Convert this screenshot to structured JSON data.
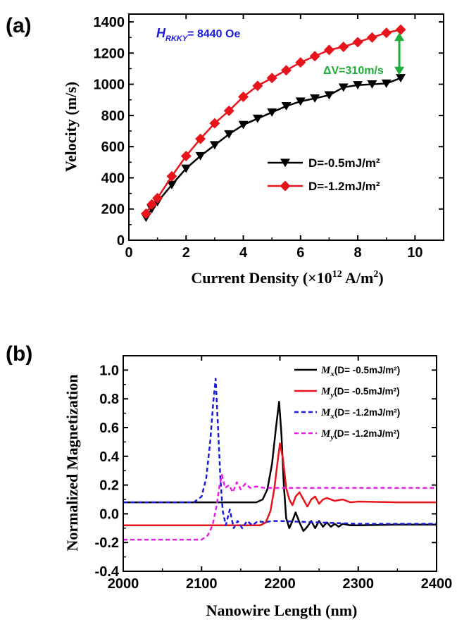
{
  "chart_data": [
    {
      "panel": "(a)",
      "type": "line",
      "xlabel": "Current Density (×10¹² A/m²)",
      "ylabel": "Velocity (m/s)",
      "xlim": [
        0,
        11
      ],
      "ylim": [
        0,
        1450
      ],
      "xticks": [
        0,
        2,
        4,
        6,
        8,
        10
      ],
      "yticks": [
        0,
        200,
        400,
        600,
        800,
        1000,
        1200,
        1400
      ],
      "annotation_hrkky": {
        "symbol": "H",
        "subscript": "RKKY",
        "value": "= 8440 Oe",
        "color": "#1a1adb"
      },
      "annotation_dv": {
        "text": "ΔV=310m/s",
        "color": "#1fae3a"
      },
      "legend_position": "center-right",
      "series": [
        {
          "name": "D=-0.5mJ/m²",
          "color": "#000000",
          "marker": "triangle-down",
          "x": [
            0.6,
            0.8,
            1.0,
            1.5,
            2.0,
            2.5,
            3.0,
            3.5,
            4.0,
            4.5,
            5.0,
            5.5,
            6.0,
            6.5,
            7.0,
            7.5,
            8.0,
            8.5,
            9.0,
            9.5
          ],
          "y": [
            145,
            200,
            245,
            355,
            460,
            540,
            610,
            680,
            740,
            780,
            820,
            860,
            890,
            910,
            930,
            980,
            995,
            1000,
            1005,
            1040
          ]
        },
        {
          "name": "D=-1.2mJ/m²",
          "color": "#e8141b",
          "marker": "diamond",
          "x": [
            0.6,
            0.8,
            1.0,
            1.5,
            2.0,
            2.5,
            3.0,
            3.5,
            4.0,
            4.5,
            5.0,
            5.5,
            6.0,
            6.5,
            7.0,
            7.5,
            8.0,
            8.5,
            9.0,
            9.5
          ],
          "y": [
            170,
            230,
            270,
            410,
            540,
            650,
            750,
            830,
            920,
            990,
            1040,
            1090,
            1140,
            1180,
            1220,
            1240,
            1270,
            1300,
            1330,
            1350
          ]
        }
      ]
    },
    {
      "panel": "(b)",
      "type": "line",
      "xlabel": "Nanowire Length (nm)",
      "ylabel": "Normalized Magnetization",
      "xlim": [
        2000,
        2400
      ],
      "ylim": [
        -0.4,
        1.1
      ],
      "xticks": [
        2000,
        2100,
        2200,
        2300,
        2400
      ],
      "yticks": [
        -0.4,
        -0.2,
        0.0,
        0.2,
        0.4,
        0.6,
        0.8,
        1.0
      ],
      "yticklabels": [
        "-0.4",
        "-0.2",
        "0.0",
        "0.2",
        "0.4",
        "0.6",
        "0.8",
        "1.0"
      ],
      "legend_position": "top-right",
      "series": [
        {
          "name_sym": "M",
          "name_sub": "x",
          "name_rest": "(D= -0.5mJ/m²)",
          "color": "#000000",
          "dash": "solid",
          "x": [
            2000,
            2170,
            2178,
            2184,
            2190,
            2195,
            2199,
            2202,
            2205,
            2208,
            2212,
            2216,
            2220,
            2225,
            2230,
            2235,
            2240,
            2245,
            2250,
            2255,
            2260,
            2265,
            2270,
            2275,
            2280,
            2290,
            2300,
            2350,
            2400
          ],
          "y": [
            0.08,
            0.08,
            0.1,
            0.17,
            0.35,
            0.6,
            0.78,
            0.55,
            0.2,
            -0.03,
            -0.1,
            -0.05,
            0.01,
            -0.06,
            -0.12,
            -0.09,
            -0.05,
            -0.1,
            -0.05,
            -0.09,
            -0.06,
            -0.09,
            -0.07,
            -0.09,
            -0.07,
            -0.08,
            -0.08,
            -0.075,
            -0.075
          ]
        },
        {
          "name_sym": "M",
          "name_sub": "y",
          "name_rest": "(D= -0.5mJ/m²)",
          "color": "#e8141b",
          "dash": "solid",
          "x": [
            2000,
            2175,
            2182,
            2188,
            2193,
            2197,
            2200,
            2204,
            2208,
            2212,
            2216,
            2220,
            2225,
            2230,
            2235,
            2240,
            2245,
            2250,
            2255,
            2260,
            2270,
            2280,
            2290,
            2300,
            2350,
            2400
          ],
          "y": [
            -0.08,
            -0.08,
            -0.06,
            0.02,
            0.18,
            0.36,
            0.49,
            0.38,
            0.18,
            0.1,
            0.06,
            0.12,
            0.15,
            0.1,
            0.05,
            0.1,
            0.12,
            0.07,
            0.1,
            0.11,
            0.09,
            0.1,
            0.08,
            0.085,
            0.08,
            0.08
          ]
        },
        {
          "name_sym": "M",
          "name_sub": "x",
          "name_rest": "(D= -1.2mJ/m²)",
          "color": "#1a1adb",
          "dash": "dashed",
          "x": [
            2000,
            2090,
            2100,
            2106,
            2111,
            2115,
            2118,
            2121,
            2124,
            2127,
            2131,
            2136,
            2141,
            2146,
            2152,
            2158,
            2165,
            2172,
            2180,
            2190,
            2200,
            2250,
            2300,
            2400
          ],
          "y": [
            0.08,
            0.08,
            0.12,
            0.25,
            0.5,
            0.78,
            0.94,
            0.6,
            0.25,
            0.02,
            -0.08,
            0.03,
            -0.1,
            -0.05,
            -0.1,
            -0.05,
            -0.08,
            -0.05,
            -0.06,
            -0.05,
            -0.05,
            -0.06,
            -0.07,
            -0.07
          ]
        },
        {
          "name_sym": "M",
          "name_sub": "y",
          "name_rest": "(D= -1.2mJ/m²)",
          "color": "#e81ee8",
          "dash": "dashed",
          "x": [
            2000,
            2100,
            2108,
            2114,
            2119,
            2123,
            2126,
            2130,
            2135,
            2140,
            2145,
            2150,
            2156,
            2162,
            2170,
            2180,
            2200,
            2250,
            2300,
            2400
          ],
          "y": [
            -0.18,
            -0.18,
            -0.15,
            -0.08,
            0.05,
            0.2,
            0.27,
            0.18,
            0.2,
            0.15,
            0.22,
            0.17,
            0.21,
            0.18,
            0.19,
            0.18,
            0.18,
            0.18,
            0.18,
            0.18
          ]
        }
      ]
    }
  ]
}
